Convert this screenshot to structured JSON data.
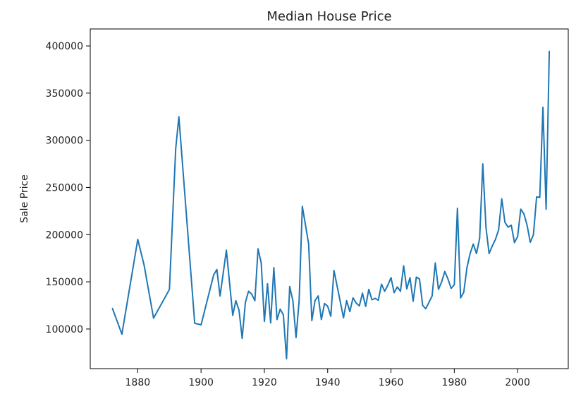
{
  "chart_data": {
    "type": "line",
    "title": "Median House Price",
    "xlabel": "",
    "ylabel": "Sale Price",
    "xlim": [
      1865,
      2016
    ],
    "ylim": [
      58000,
      418000
    ],
    "x_ticks": [
      1880,
      1900,
      1920,
      1940,
      1960,
      1980,
      2000
    ],
    "y_ticks": [
      100000,
      150000,
      200000,
      250000,
      300000,
      350000,
      400000
    ],
    "grid": false,
    "series": [
      {
        "color": "#1f77b4",
        "points": [
          [
            1872,
            122000
          ],
          [
            1875,
            94500
          ],
          [
            1880,
            195000
          ],
          [
            1882,
            168000
          ],
          [
            1885,
            111500
          ],
          [
            1890,
            142000
          ],
          [
            1892,
            291000
          ],
          [
            1893,
            325000
          ],
          [
            1898,
            106000
          ],
          [
            1900,
            104500
          ],
          [
            1904,
            157500
          ],
          [
            1905,
            163000
          ],
          [
            1906,
            135000
          ],
          [
            1908,
            183500
          ],
          [
            1910,
            114500
          ],
          [
            1911,
            130000
          ],
          [
            1912,
            120000
          ],
          [
            1913,
            90000
          ],
          [
            1914,
            128000
          ],
          [
            1915,
            140000
          ],
          [
            1916,
            137000
          ],
          [
            1917,
            130000
          ],
          [
            1918,
            185000
          ],
          [
            1919,
            170000
          ],
          [
            1920,
            108000
          ],
          [
            1921,
            148000
          ],
          [
            1922,
            106500
          ],
          [
            1923,
            165000
          ],
          [
            1924,
            110000
          ],
          [
            1925,
            121000
          ],
          [
            1926,
            115000
          ],
          [
            1927,
            68500
          ],
          [
            1928,
            145000
          ],
          [
            1929,
            130000
          ],
          [
            1930,
            91000
          ],
          [
            1931,
            130000
          ],
          [
            1932,
            230000
          ],
          [
            1934,
            190000
          ],
          [
            1935,
            109000
          ],
          [
            1936,
            130000
          ],
          [
            1937,
            135000
          ],
          [
            1938,
            110000
          ],
          [
            1939,
            127000
          ],
          [
            1940,
            124000
          ],
          [
            1941,
            113500
          ],
          [
            1942,
            162000
          ],
          [
            1945,
            112000
          ],
          [
            1946,
            130000
          ],
          [
            1947,
            118500
          ],
          [
            1948,
            133000
          ],
          [
            1949,
            127500
          ],
          [
            1950,
            124500
          ],
          [
            1951,
            138000
          ],
          [
            1952,
            124000
          ],
          [
            1953,
            142000
          ],
          [
            1954,
            131000
          ],
          [
            1955,
            132500
          ],
          [
            1956,
            130500
          ],
          [
            1957,
            147500
          ],
          [
            1958,
            140000
          ],
          [
            1959,
            146500
          ],
          [
            1960,
            154500
          ],
          [
            1961,
            138500
          ],
          [
            1962,
            144500
          ],
          [
            1963,
            140000
          ],
          [
            1964,
            167000
          ],
          [
            1965,
            142500
          ],
          [
            1966,
            154500
          ],
          [
            1967,
            129500
          ],
          [
            1968,
            155000
          ],
          [
            1969,
            153000
          ],
          [
            1970,
            125000
          ],
          [
            1971,
            121500
          ],
          [
            1973,
            135000
          ],
          [
            1974,
            170000
          ],
          [
            1975,
            142000
          ],
          [
            1976,
            150000
          ],
          [
            1977,
            161000
          ],
          [
            1978,
            153000
          ],
          [
            1979,
            143000
          ],
          [
            1980,
            147000
          ],
          [
            1981,
            228000
          ],
          [
            1982,
            133000
          ],
          [
            1983,
            139000
          ],
          [
            1984,
            165000
          ],
          [
            1985,
            180000
          ],
          [
            1986,
            190000
          ],
          [
            1987,
            180000
          ],
          [
            1988,
            196000
          ],
          [
            1989,
            275000
          ],
          [
            1990,
            207500
          ],
          [
            1991,
            180000
          ],
          [
            1992,
            188000
          ],
          [
            1993,
            195000
          ],
          [
            1994,
            205000
          ],
          [
            1995,
            238000
          ],
          [
            1996,
            213000
          ],
          [
            1997,
            208000
          ],
          [
            1998,
            210000
          ],
          [
            1999,
            191500
          ],
          [
            2000,
            198000
          ],
          [
            2001,
            227000
          ],
          [
            2002,
            222000
          ],
          [
            2003,
            210000
          ],
          [
            2004,
            192000
          ],
          [
            2005,
            200000
          ],
          [
            2006,
            240000
          ],
          [
            2007,
            239500
          ],
          [
            2008,
            335000
          ],
          [
            2009,
            227000
          ],
          [
            2010,
            394500
          ]
        ]
      }
    ]
  }
}
